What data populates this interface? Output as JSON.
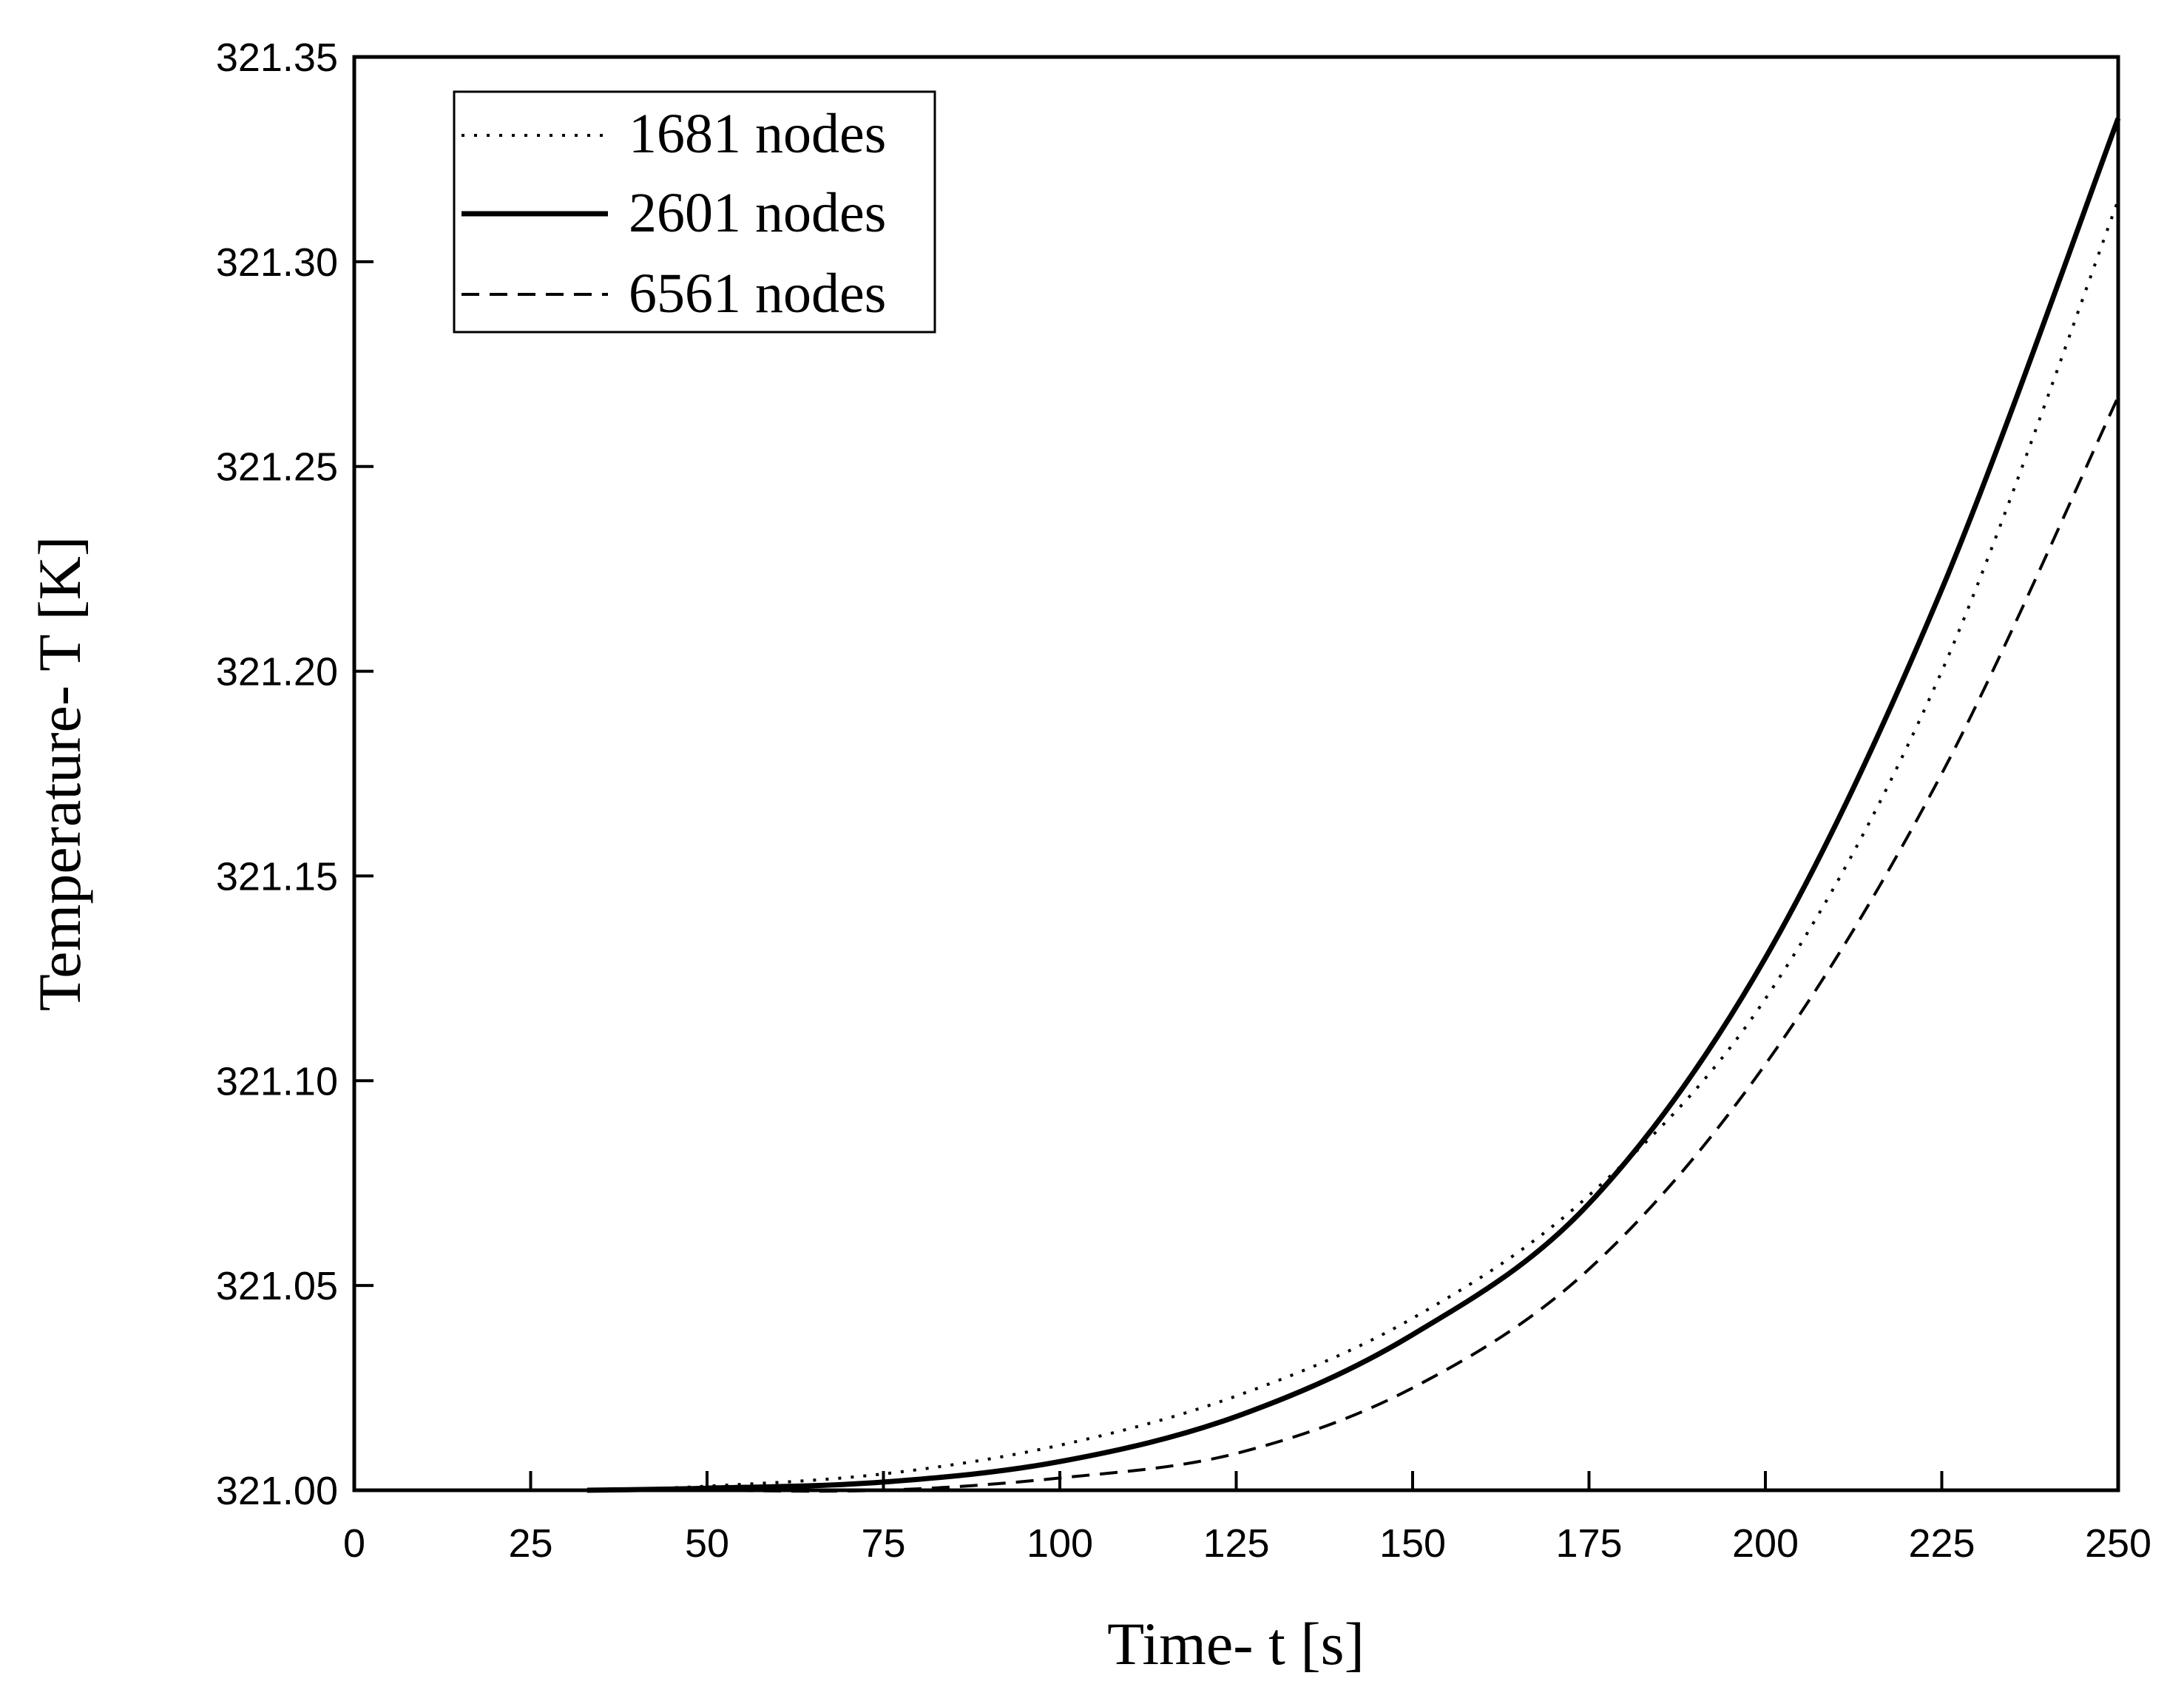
{
  "chart_data": {
    "type": "line",
    "xlabel": "Time- t [s]",
    "ylabel": "Temperature- T [K]",
    "xlim": [
      0,
      250
    ],
    "ylim": [
      321.0,
      321.35
    ],
    "xticks": [
      "0",
      "25",
      "50",
      "75",
      "100",
      "125",
      "150",
      "175",
      "200",
      "225",
      "250"
    ],
    "yticks": [
      "321.00",
      "321.05",
      "321.10",
      "321.15",
      "321.20",
      "321.25",
      "321.30",
      "321.35"
    ],
    "grid": false,
    "legend_position": "top-left",
    "series": [
      {
        "name": "1681 nodes",
        "style": "dotted",
        "color": "#000000",
        "x": [
          33,
          50,
          75,
          100,
          125,
          150,
          175,
          200,
          225,
          250
        ],
        "y": [
          321.0,
          321.001,
          321.004,
          321.011,
          321.023,
          321.042,
          321.072,
          321.12,
          321.2,
          321.315
        ]
      },
      {
        "name": "2601 nodes",
        "style": "solid",
        "color": "#000000",
        "x": [
          33,
          50,
          75,
          100,
          125,
          150,
          175,
          200,
          225,
          250
        ],
        "y": [
          321.0,
          321.0005,
          321.002,
          321.007,
          321.018,
          321.038,
          321.07,
          321.13,
          321.22,
          321.335
        ]
      },
      {
        "name": "6561 nodes",
        "style": "dashed",
        "color": "#000000",
        "x": [
          50,
          75,
          100,
          125,
          150,
          175,
          200,
          225,
          250
        ],
        "y": [
          321.0,
          321.0,
          321.003,
          321.009,
          321.025,
          321.054,
          321.104,
          321.175,
          321.267
        ]
      }
    ]
  }
}
